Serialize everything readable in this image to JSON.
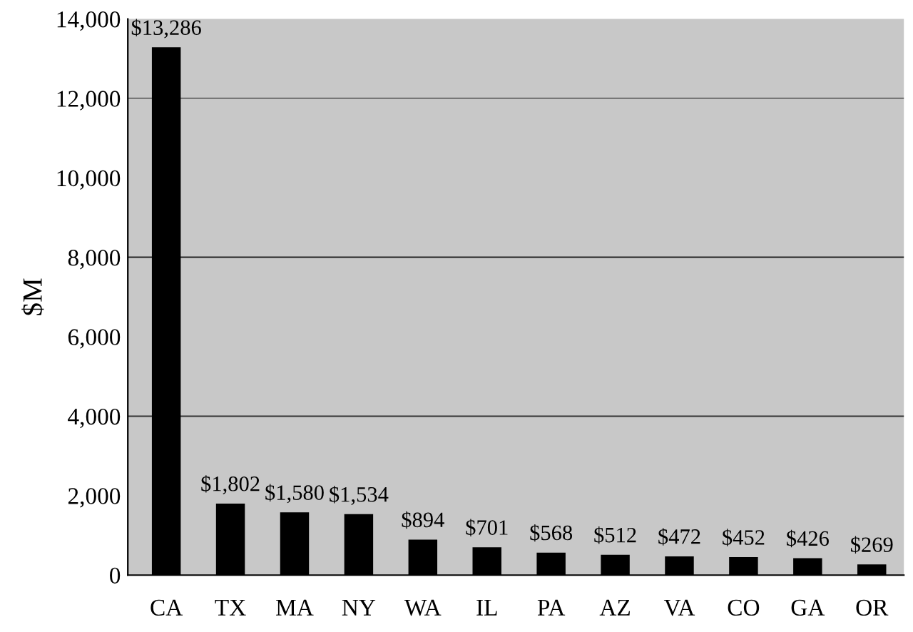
{
  "chart_data": {
    "type": "bar",
    "ylabel": "$M",
    "categories": [
      "CA",
      "TX",
      "MA",
      "NY",
      "WA",
      "IL",
      "PA",
      "AZ",
      "VA",
      "CO",
      "GA",
      "OR"
    ],
    "values": [
      13286,
      1802,
      1580,
      1534,
      894,
      701,
      568,
      512,
      472,
      452,
      426,
      269
    ],
    "value_labels": [
      "$13,286",
      "$1,802",
      "$1,580",
      "$1,534",
      "$894",
      "$701",
      "$568",
      "$512",
      "$472",
      "$452",
      "$426",
      "$269"
    ],
    "color": "#000000",
    "ylim": [
      0,
      14000
    ],
    "yticks": [
      0,
      {
        "value": 2000,
        "label": "2,000"
      },
      {
        "value": 4000,
        "label": "4,000"
      },
      {
        "value": 6000,
        "label": "6,000"
      },
      {
        "value": 8000,
        "label": "8,000"
      },
      {
        "value": 10000,
        "label": "10,000"
      },
      {
        "value": 12000,
        "label": "12,000"
      },
      {
        "value": 14000,
        "label": "14,000"
      }
    ],
    "ref_lines": [
      {
        "axis": "y",
        "value": 4000,
        "color": "#333333"
      },
      {
        "axis": "y",
        "value": 8000,
        "color": "#333333"
      },
      {
        "axis": "y",
        "value": 12000,
        "color": "#777777"
      }
    ],
    "grid": false
  }
}
